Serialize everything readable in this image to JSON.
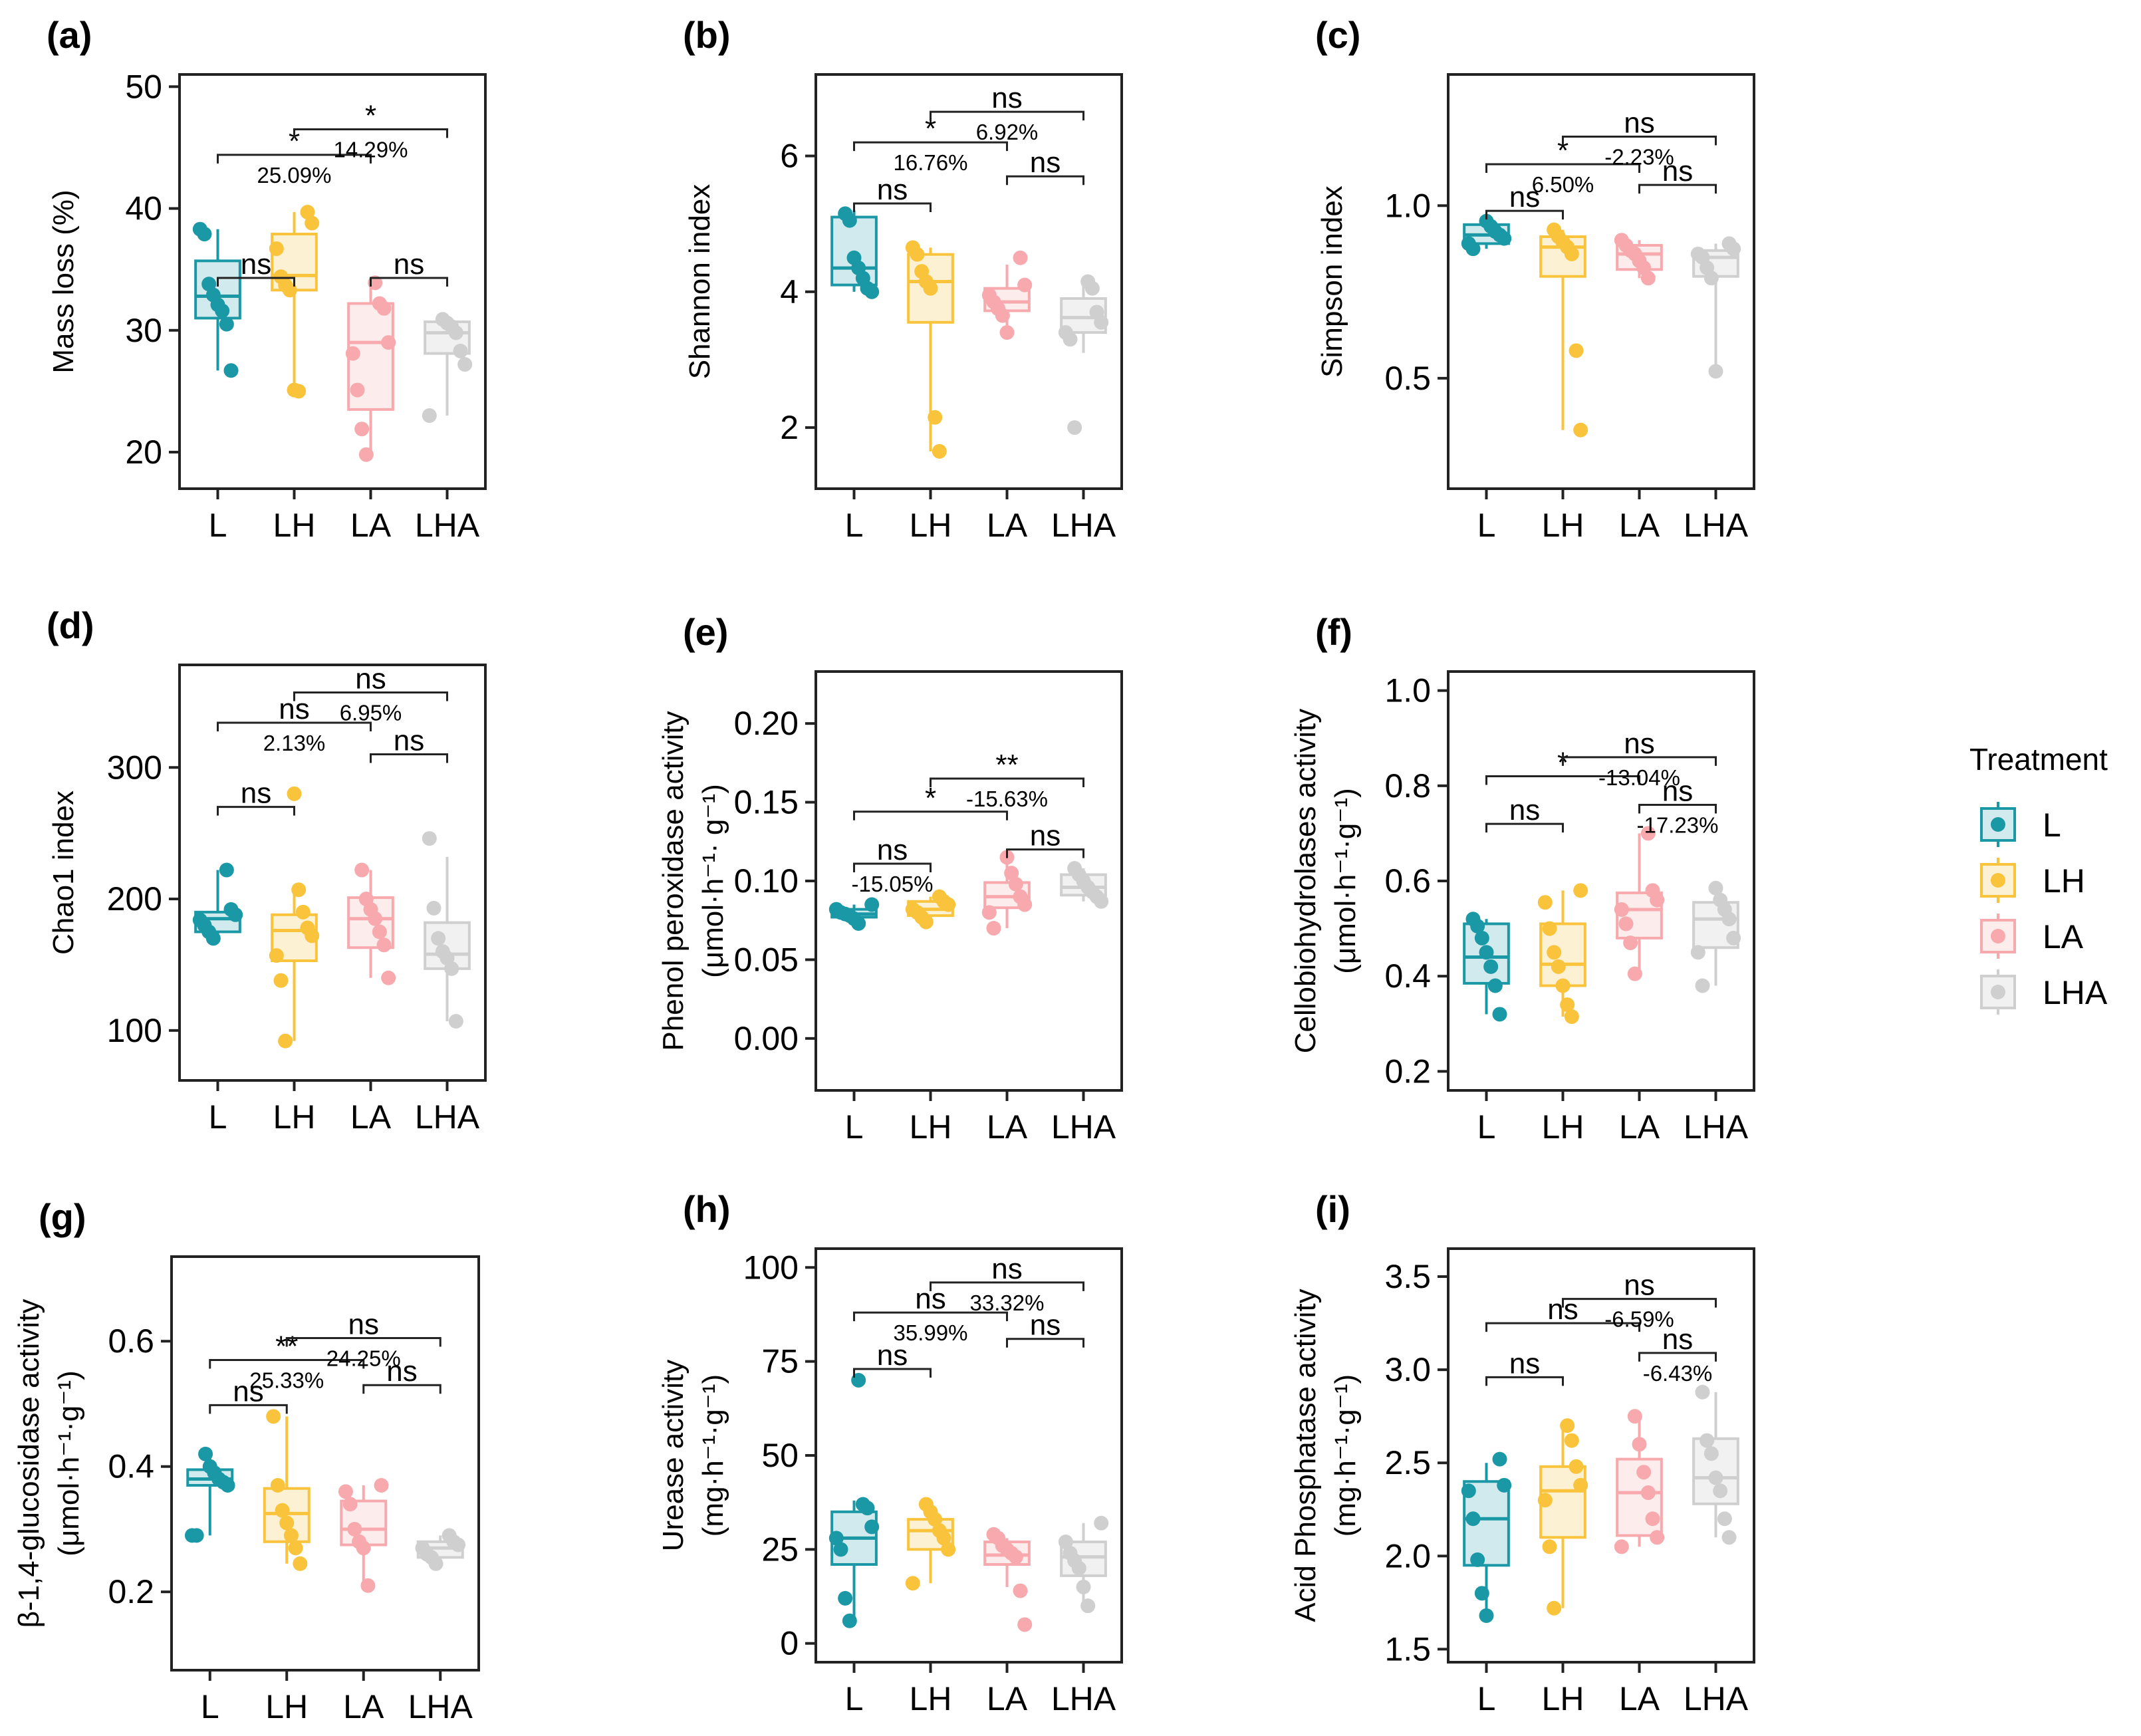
{
  "legend": {
    "title": "Treatment",
    "items": [
      {
        "label": "L",
        "color": "#1b98a6",
        "fill": "#d1eaed"
      },
      {
        "label": "LH",
        "color": "#f9c33c",
        "fill": "#fdf1d3"
      },
      {
        "label": "LA",
        "color": "#f7a9ad",
        "fill": "#fdecec"
      },
      {
        "label": "LHA",
        "color": "#cfcfcf",
        "fill": "#f1f1f1"
      }
    ]
  },
  "chart_data": [
    {
      "id": "a",
      "panel_label": "(a)",
      "type": "box",
      "categories": [
        "L",
        "LH",
        "LA",
        "LHA"
      ],
      "ylabel": [
        "Mass loss (%)"
      ],
      "ylim": [
        17,
        51
      ],
      "yticks": [
        20,
        30,
        40,
        50
      ],
      "boxes": [
        {
          "q1": 31,
          "median": 32.8,
          "q3": 35.7,
          "wlo": 26.7,
          "whi": 38.3
        },
        {
          "q1": 33.3,
          "median": 34.5,
          "q3": 37.9,
          "wlo": 25.1,
          "whi": 39.7
        },
        {
          "q1": 23.5,
          "median": 29,
          "q3": 32.2,
          "wlo": 19.8,
          "whi": 33.9
        },
        {
          "q1": 28.1,
          "median": 29.8,
          "q3": 30.7,
          "wlo": 23,
          "whi": 30.9
        }
      ],
      "points": [
        [
          38.3,
          37.9,
          33.8,
          32.9,
          32.1,
          31.6,
          30.5,
          26.7
        ],
        [
          39.7,
          38.8,
          36.7,
          34.4,
          33.7,
          33.3,
          25.1,
          25.0
        ],
        [
          33.9,
          32.2,
          31.8,
          29.0,
          28.1,
          25.1,
          21.9,
          19.8
        ],
        [
          30.9,
          30.6,
          30.3,
          29.8,
          28.3,
          27.2,
          23.0
        ]
      ],
      "comparisons": [
        {
          "from": 0,
          "to": 1,
          "level": 34.3,
          "sig": "ns",
          "pct": ""
        },
        {
          "from": 2,
          "to": 3,
          "level": 34.3,
          "sig": "ns",
          "pct": ""
        },
        {
          "from": 0,
          "to": 2,
          "level": 44.4,
          "sig": "*",
          "pct": "25.09%"
        },
        {
          "from": 1,
          "to": 3,
          "level": 46.5,
          "sig": "*",
          "pct": "14.29%"
        }
      ]
    },
    {
      "id": "b",
      "panel_label": "(b)",
      "type": "box",
      "categories": [
        "L",
        "LH",
        "LA",
        "LHA"
      ],
      "ylabel": [
        "Shannon index"
      ],
      "ylim": [
        1.1,
        7.2
      ],
      "yticks": [
        2,
        4,
        6
      ],
      "boxes": [
        {
          "q1": 4.1,
          "median": 4.35,
          "q3": 5.1,
          "wlo": 4.0,
          "whi": 5.2
        },
        {
          "q1": 3.55,
          "median": 4.15,
          "q3": 4.55,
          "wlo": 1.65,
          "whi": 4.65
        },
        {
          "q1": 3.72,
          "median": 3.85,
          "q3": 4.05,
          "wlo": 3.4,
          "whi": 4.4
        },
        {
          "q1": 3.4,
          "median": 3.62,
          "q3": 3.9,
          "wlo": 3.1,
          "whi": 4.1
        }
      ],
      "points": [
        [
          5.15,
          5.05,
          4.5,
          4.35,
          4.2,
          4.05,
          4.0
        ],
        [
          4.65,
          4.55,
          4.3,
          4.15,
          4.05,
          2.15,
          1.65
        ],
        [
          4.5,
          4.1,
          3.95,
          3.85,
          3.75,
          3.65,
          3.4
        ],
        [
          4.15,
          4.05,
          3.7,
          3.55,
          3.4,
          3.3,
          2.0
        ]
      ],
      "comparisons": [
        {
          "from": 0,
          "to": 1,
          "level": 5.3,
          "sig": "ns",
          "pct": ""
        },
        {
          "from": 2,
          "to": 3,
          "level": 5.7,
          "sig": "ns",
          "pct": ""
        },
        {
          "from": 0,
          "to": 2,
          "level": 6.2,
          "sig": "*",
          "pct": "16.76%"
        },
        {
          "from": 1,
          "to": 3,
          "level": 6.65,
          "sig": "ns",
          "pct": "6.92%"
        }
      ]
    },
    {
      "id": "c",
      "panel_label": "(c)",
      "type": "box",
      "categories": [
        "L",
        "LH",
        "LA",
        "LHA"
      ],
      "ylabel": [
        "Simpson index"
      ],
      "ylim": [
        0.18,
        1.38
      ],
      "yticks": [
        0.5,
        1.0
      ],
      "boxes": [
        {
          "q1": 0.89,
          "median": 0.915,
          "q3": 0.945,
          "wlo": 0.875,
          "whi": 0.955
        },
        {
          "q1": 0.795,
          "median": 0.88,
          "q3": 0.91,
          "wlo": 0.35,
          "whi": 0.93
        },
        {
          "q1": 0.815,
          "median": 0.86,
          "q3": 0.885,
          "wlo": 0.79,
          "whi": 0.9
        },
        {
          "q1": 0.795,
          "median": 0.85,
          "q3": 0.87,
          "wlo": 0.52,
          "whi": 0.89
        }
      ],
      "points": [
        [
          0.955,
          0.94,
          0.925,
          0.915,
          0.905,
          0.89,
          0.875
        ],
        [
          0.93,
          0.91,
          0.895,
          0.88,
          0.86,
          0.58,
          0.35
        ],
        [
          0.9,
          0.885,
          0.87,
          0.86,
          0.84,
          0.82,
          0.79
        ],
        [
          0.89,
          0.875,
          0.86,
          0.85,
          0.82,
          0.79,
          0.52
        ]
      ],
      "comparisons": [
        {
          "from": 0,
          "to": 1,
          "level": 0.985,
          "sig": "ns",
          "pct": ""
        },
        {
          "from": 2,
          "to": 3,
          "level": 1.06,
          "sig": "ns",
          "pct": ""
        },
        {
          "from": 0,
          "to": 2,
          "level": 1.12,
          "sig": "*",
          "pct": "6.50%"
        },
        {
          "from": 1,
          "to": 3,
          "level": 1.2,
          "sig": "ns",
          "pct": "-2.23%"
        }
      ]
    },
    {
      "id": "d",
      "panel_label": "(d)",
      "type": "box",
      "categories": [
        "L",
        "LH",
        "LA",
        "LHA"
      ],
      "ylabel": [
        "Chao1 index"
      ],
      "ylim": [
        62,
        378
      ],
      "yticks": [
        100,
        200,
        300
      ],
      "boxes": [
        {
          "q1": 175,
          "median": 185,
          "q3": 190,
          "wlo": 168,
          "whi": 222
        },
        {
          "q1": 153,
          "median": 176,
          "q3": 188,
          "wlo": 92,
          "whi": 207
        },
        {
          "q1": 163,
          "median": 185,
          "q3": 201,
          "wlo": 140,
          "whi": 222
        },
        {
          "q1": 147,
          "median": 158,
          "q3": 182,
          "wlo": 107,
          "whi": 232
        }
      ],
      "points": [
        [
          222,
          192,
          188,
          184,
          180,
          175,
          170
        ],
        [
          280,
          207,
          190,
          178,
          172,
          157,
          138,
          92
        ],
        [
          222,
          200,
          192,
          185,
          175,
          165,
          140
        ],
        [
          246,
          193,
          170,
          160,
          155,
          147,
          107
        ]
      ],
      "comparisons": [
        {
          "from": 0,
          "to": 1,
          "level": 270,
          "sig": "ns",
          "pct": ""
        },
        {
          "from": 2,
          "to": 3,
          "level": 310,
          "sig": "ns",
          "pct": ""
        },
        {
          "from": 0,
          "to": 2,
          "level": 334,
          "sig": "ns",
          "pct": "2.13%"
        },
        {
          "from": 1,
          "to": 3,
          "level": 357,
          "sig": "ns",
          "pct": "6.95%"
        }
      ]
    },
    {
      "id": "e",
      "panel_label": "(e)",
      "type": "box",
      "categories": [
        "L",
        "LH",
        "LA",
        "LHA"
      ],
      "ylabel": [
        "Phenol peroxidase activity",
        "(μmol·h⁻¹· g⁻¹)"
      ],
      "ylim": [
        -0.033,
        0.233
      ],
      "yticks": [
        0.0,
        0.05,
        0.1,
        0.15,
        0.2
      ],
      "boxes": [
        {
          "q1": 0.077,
          "median": 0.079,
          "q3": 0.082,
          "wlo": 0.073,
          "whi": 0.085
        },
        {
          "q1": 0.078,
          "median": 0.082,
          "q3": 0.087,
          "wlo": 0.074,
          "whi": 0.09
        },
        {
          "q1": 0.083,
          "median": 0.09,
          "q3": 0.099,
          "wlo": 0.07,
          "whi": 0.115
        },
        {
          "q1": 0.091,
          "median": 0.096,
          "q3": 0.104,
          "wlo": 0.087,
          "whi": 0.108
        }
      ],
      "points": [
        [
          0.085,
          0.082,
          0.08,
          0.079,
          0.078,
          0.076,
          0.073
        ],
        [
          0.09,
          0.087,
          0.085,
          0.082,
          0.08,
          0.077,
          0.074
        ],
        [
          0.115,
          0.105,
          0.098,
          0.09,
          0.085,
          0.08,
          0.07
        ],
        [
          0.108,
          0.104,
          0.1,
          0.096,
          0.093,
          0.09,
          0.087
        ]
      ],
      "comparisons": [
        {
          "from": 0,
          "to": 1,
          "level": 0.111,
          "sig": "ns",
          "pct": "-15.05%"
        },
        {
          "from": 2,
          "to": 3,
          "level": 0.12,
          "sig": "ns",
          "pct": ""
        },
        {
          "from": 0,
          "to": 2,
          "level": 0.144,
          "sig": "*",
          "pct": ""
        },
        {
          "from": 1,
          "to": 3,
          "level": 0.165,
          "sig": "**",
          "pct": "-15.63%"
        }
      ]
    },
    {
      "id": "f",
      "panel_label": "(f)",
      "type": "box",
      "categories": [
        "L",
        "LH",
        "LA",
        "LHA"
      ],
      "ylabel": [
        "Cellobiohydrolases activity",
        "(μmol·h⁻¹·g⁻¹)"
      ],
      "ylim": [
        0.16,
        1.04
      ],
      "yticks": [
        0.2,
        0.4,
        0.6,
        0.8,
        1.0
      ],
      "boxes": [
        {
          "q1": 0.385,
          "median": 0.44,
          "q3": 0.51,
          "wlo": 0.32,
          "whi": 0.52
        },
        {
          "q1": 0.38,
          "median": 0.425,
          "q3": 0.51,
          "wlo": 0.315,
          "whi": 0.58
        },
        {
          "q1": 0.48,
          "median": 0.54,
          "q3": 0.575,
          "wlo": 0.405,
          "whi": 0.7
        },
        {
          "q1": 0.46,
          "median": 0.52,
          "q3": 0.555,
          "wlo": 0.38,
          "whi": 0.585
        }
      ],
      "points": [
        [
          0.52,
          0.505,
          0.48,
          0.45,
          0.42,
          0.38,
          0.32
        ],
        [
          0.58,
          0.555,
          0.5,
          0.45,
          0.42,
          0.38,
          0.34,
          0.315
        ],
        [
          0.7,
          0.58,
          0.56,
          0.54,
          0.51,
          0.47,
          0.405
        ],
        [
          0.585,
          0.56,
          0.54,
          0.52,
          0.48,
          0.45,
          0.38
        ]
      ],
      "comparisons": [
        {
          "from": 0,
          "to": 1,
          "level": 0.72,
          "sig": "ns",
          "pct": ""
        },
        {
          "from": 2,
          "to": 3,
          "level": 0.76,
          "sig": "ns",
          "pct": "-17.23%"
        },
        {
          "from": 0,
          "to": 2,
          "level": 0.82,
          "sig": "*",
          "pct": ""
        },
        {
          "from": 1,
          "to": 3,
          "level": 0.86,
          "sig": "ns",
          "pct": "-13.04%"
        }
      ]
    },
    {
      "id": "g",
      "panel_label": "(g)",
      "type": "box",
      "categories": [
        "L",
        "LH",
        "LA",
        "LHA"
      ],
      "ylabel": [
        "β-1,4-glucosidase activity",
        "(μmol·h⁻¹·g⁻¹)"
      ],
      "ylim": [
        0.075,
        0.735
      ],
      "yticks": [
        0.2,
        0.4,
        0.6
      ],
      "boxes": [
        {
          "q1": 0.37,
          "median": 0.38,
          "q3": 0.395,
          "wlo": 0.29,
          "whi": 0.42
        },
        {
          "q1": 0.28,
          "median": 0.325,
          "q3": 0.365,
          "wlo": 0.245,
          "whi": 0.48
        },
        {
          "q1": 0.275,
          "median": 0.3,
          "q3": 0.345,
          "wlo": 0.21,
          "whi": 0.37
        },
        {
          "q1": 0.255,
          "median": 0.27,
          "q3": 0.28,
          "wlo": 0.245,
          "whi": 0.29
        }
      ],
      "points": [
        [
          0.42,
          0.4,
          0.39,
          0.38,
          0.375,
          0.37,
          0.29,
          0.29
        ],
        [
          0.48,
          0.37,
          0.33,
          0.31,
          0.29,
          0.27,
          0.245
        ],
        [
          0.37,
          0.36,
          0.34,
          0.3,
          0.28,
          0.27,
          0.21
        ],
        [
          0.29,
          0.28,
          0.275,
          0.27,
          0.26,
          0.255,
          0.245
        ]
      ],
      "comparisons": [
        {
          "from": 0,
          "to": 1,
          "level": 0.498,
          "sig": "ns",
          "pct": ""
        },
        {
          "from": 2,
          "to": 3,
          "level": 0.53,
          "sig": "ns",
          "pct": ""
        },
        {
          "from": 0,
          "to": 2,
          "level": 0.57,
          "sig": "**",
          "pct": "25.33%"
        },
        {
          "from": 1,
          "to": 3,
          "level": 0.605,
          "sig": "ns",
          "pct": "24.25%"
        }
      ]
    },
    {
      "id": "h",
      "panel_label": "(h)",
      "type": "box",
      "categories": [
        "L",
        "LH",
        "LA",
        "LHA"
      ],
      "ylabel": [
        "Urease activity",
        "(mg·h⁻¹·g⁻¹)"
      ],
      "ylim": [
        -5,
        105
      ],
      "yticks": [
        0,
        25,
        50,
        75,
        100
      ],
      "boxes": [
        {
          "q1": 21,
          "median": 28,
          "q3": 35,
          "wlo": 6,
          "whi": 38
        },
        {
          "q1": 25,
          "median": 30,
          "q3": 33,
          "wlo": 16,
          "whi": 37
        },
        {
          "q1": 21,
          "median": 23.5,
          "q3": 27,
          "wlo": 15,
          "whi": 28
        },
        {
          "q1": 18,
          "median": 23,
          "q3": 27,
          "wlo": 10,
          "whi": 32
        }
      ],
      "points": [
        [
          70,
          37,
          36,
          31,
          28,
          25,
          12,
          6
        ],
        [
          37,
          35,
          33,
          30,
          28,
          25,
          16
        ],
        [
          29,
          28,
          26,
          25,
          24,
          23,
          14,
          5
        ],
        [
          32,
          27,
          24,
          22,
          20,
          15,
          10
        ]
      ],
      "comparisons": [
        {
          "from": 0,
          "to": 1,
          "level": 73,
          "sig": "ns",
          "pct": ""
        },
        {
          "from": 2,
          "to": 3,
          "level": 81,
          "sig": "ns",
          "pct": ""
        },
        {
          "from": 0,
          "to": 2,
          "level": 88,
          "sig": "ns",
          "pct": "35.99%"
        },
        {
          "from": 1,
          "to": 3,
          "level": 96,
          "sig": "ns",
          "pct": "33.32%"
        }
      ]
    },
    {
      "id": "i",
      "panel_label": "(i)",
      "type": "box",
      "categories": [
        "L",
        "LH",
        "LA",
        "LHA"
      ],
      "ylabel": [
        "Acid Phosphatase activity",
        "(mg·h⁻¹·g⁻¹)"
      ],
      "ylim": [
        1.43,
        3.65
      ],
      "yticks": [
        1.5,
        2.0,
        2.5,
        3.0,
        3.5
      ],
      "boxes": [
        {
          "q1": 1.95,
          "median": 2.2,
          "q3": 2.4,
          "wlo": 1.68,
          "whi": 2.5
        },
        {
          "q1": 2.1,
          "median": 2.35,
          "q3": 2.48,
          "wlo": 1.72,
          "whi": 2.72
        },
        {
          "q1": 2.11,
          "median": 2.34,
          "q3": 2.52,
          "wlo": 2.05,
          "whi": 2.76
        },
        {
          "q1": 2.28,
          "median": 2.42,
          "q3": 2.63,
          "wlo": 2.1,
          "whi": 2.88
        }
      ],
      "points": [
        [
          2.52,
          2.38,
          2.35,
          2.2,
          1.98,
          1.8,
          1.68
        ],
        [
          2.7,
          2.62,
          2.48,
          2.38,
          2.3,
          2.05,
          1.72
        ],
        [
          2.75,
          2.6,
          2.45,
          2.34,
          2.2,
          2.1,
          2.05
        ],
        [
          2.88,
          2.62,
          2.55,
          2.42,
          2.35,
          2.2,
          2.1
        ]
      ],
      "comparisons": [
        {
          "from": 0,
          "to": 1,
          "level": 2.96,
          "sig": "ns",
          "pct": ""
        },
        {
          "from": 2,
          "to": 3,
          "level": 3.09,
          "sig": "ns",
          "pct": "-6.43%"
        },
        {
          "from": 0,
          "to": 2,
          "level": 3.25,
          "sig": "ns",
          "pct": ""
        },
        {
          "from": 1,
          "to": 3,
          "level": 3.38,
          "sig": "ns",
          "pct": "-6.59%"
        }
      ]
    }
  ]
}
